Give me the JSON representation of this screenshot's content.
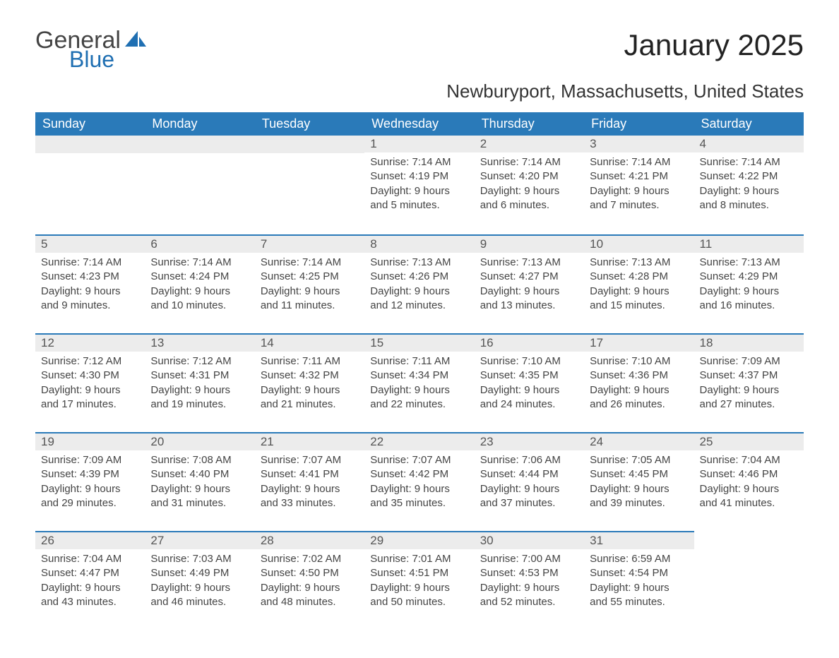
{
  "brand": {
    "general": "General",
    "blue": "Blue",
    "sail_color": "#1f6fb2"
  },
  "title": "January 2025",
  "location": "Newburyport, Massachusetts, United States",
  "colors": {
    "header_bg": "#2a7ab9",
    "header_text": "#ffffff",
    "daybar_bg": "#ececec",
    "daybar_border": "#2a7ab9",
    "body_text": "#444444",
    "page_bg": "#ffffff"
  },
  "daysOfWeek": [
    "Sunday",
    "Monday",
    "Tuesday",
    "Wednesday",
    "Thursday",
    "Friday",
    "Saturday"
  ],
  "weeks": [
    [
      null,
      null,
      null,
      {
        "n": "1",
        "sr": "Sunrise: 7:14 AM",
        "ss": "Sunset: 4:19 PM",
        "d1": "Daylight: 9 hours",
        "d2": "and 5 minutes."
      },
      {
        "n": "2",
        "sr": "Sunrise: 7:14 AM",
        "ss": "Sunset: 4:20 PM",
        "d1": "Daylight: 9 hours",
        "d2": "and 6 minutes."
      },
      {
        "n": "3",
        "sr": "Sunrise: 7:14 AM",
        "ss": "Sunset: 4:21 PM",
        "d1": "Daylight: 9 hours",
        "d2": "and 7 minutes."
      },
      {
        "n": "4",
        "sr": "Sunrise: 7:14 AM",
        "ss": "Sunset: 4:22 PM",
        "d1": "Daylight: 9 hours",
        "d2": "and 8 minutes."
      }
    ],
    [
      {
        "n": "5",
        "sr": "Sunrise: 7:14 AM",
        "ss": "Sunset: 4:23 PM",
        "d1": "Daylight: 9 hours",
        "d2": "and 9 minutes."
      },
      {
        "n": "6",
        "sr": "Sunrise: 7:14 AM",
        "ss": "Sunset: 4:24 PM",
        "d1": "Daylight: 9 hours",
        "d2": "and 10 minutes."
      },
      {
        "n": "7",
        "sr": "Sunrise: 7:14 AM",
        "ss": "Sunset: 4:25 PM",
        "d1": "Daylight: 9 hours",
        "d2": "and 11 minutes."
      },
      {
        "n": "8",
        "sr": "Sunrise: 7:13 AM",
        "ss": "Sunset: 4:26 PM",
        "d1": "Daylight: 9 hours",
        "d2": "and 12 minutes."
      },
      {
        "n": "9",
        "sr": "Sunrise: 7:13 AM",
        "ss": "Sunset: 4:27 PM",
        "d1": "Daylight: 9 hours",
        "d2": "and 13 minutes."
      },
      {
        "n": "10",
        "sr": "Sunrise: 7:13 AM",
        "ss": "Sunset: 4:28 PM",
        "d1": "Daylight: 9 hours",
        "d2": "and 15 minutes."
      },
      {
        "n": "11",
        "sr": "Sunrise: 7:13 AM",
        "ss": "Sunset: 4:29 PM",
        "d1": "Daylight: 9 hours",
        "d2": "and 16 minutes."
      }
    ],
    [
      {
        "n": "12",
        "sr": "Sunrise: 7:12 AM",
        "ss": "Sunset: 4:30 PM",
        "d1": "Daylight: 9 hours",
        "d2": "and 17 minutes."
      },
      {
        "n": "13",
        "sr": "Sunrise: 7:12 AM",
        "ss": "Sunset: 4:31 PM",
        "d1": "Daylight: 9 hours",
        "d2": "and 19 minutes."
      },
      {
        "n": "14",
        "sr": "Sunrise: 7:11 AM",
        "ss": "Sunset: 4:32 PM",
        "d1": "Daylight: 9 hours",
        "d2": "and 21 minutes."
      },
      {
        "n": "15",
        "sr": "Sunrise: 7:11 AM",
        "ss": "Sunset: 4:34 PM",
        "d1": "Daylight: 9 hours",
        "d2": "and 22 minutes."
      },
      {
        "n": "16",
        "sr": "Sunrise: 7:10 AM",
        "ss": "Sunset: 4:35 PM",
        "d1": "Daylight: 9 hours",
        "d2": "and 24 minutes."
      },
      {
        "n": "17",
        "sr": "Sunrise: 7:10 AM",
        "ss": "Sunset: 4:36 PM",
        "d1": "Daylight: 9 hours",
        "d2": "and 26 minutes."
      },
      {
        "n": "18",
        "sr": "Sunrise: 7:09 AM",
        "ss": "Sunset: 4:37 PM",
        "d1": "Daylight: 9 hours",
        "d2": "and 27 minutes."
      }
    ],
    [
      {
        "n": "19",
        "sr": "Sunrise: 7:09 AM",
        "ss": "Sunset: 4:39 PM",
        "d1": "Daylight: 9 hours",
        "d2": "and 29 minutes."
      },
      {
        "n": "20",
        "sr": "Sunrise: 7:08 AM",
        "ss": "Sunset: 4:40 PM",
        "d1": "Daylight: 9 hours",
        "d2": "and 31 minutes."
      },
      {
        "n": "21",
        "sr": "Sunrise: 7:07 AM",
        "ss": "Sunset: 4:41 PM",
        "d1": "Daylight: 9 hours",
        "d2": "and 33 minutes."
      },
      {
        "n": "22",
        "sr": "Sunrise: 7:07 AM",
        "ss": "Sunset: 4:42 PM",
        "d1": "Daylight: 9 hours",
        "d2": "and 35 minutes."
      },
      {
        "n": "23",
        "sr": "Sunrise: 7:06 AM",
        "ss": "Sunset: 4:44 PM",
        "d1": "Daylight: 9 hours",
        "d2": "and 37 minutes."
      },
      {
        "n": "24",
        "sr": "Sunrise: 7:05 AM",
        "ss": "Sunset: 4:45 PM",
        "d1": "Daylight: 9 hours",
        "d2": "and 39 minutes."
      },
      {
        "n": "25",
        "sr": "Sunrise: 7:04 AM",
        "ss": "Sunset: 4:46 PM",
        "d1": "Daylight: 9 hours",
        "d2": "and 41 minutes."
      }
    ],
    [
      {
        "n": "26",
        "sr": "Sunrise: 7:04 AM",
        "ss": "Sunset: 4:47 PM",
        "d1": "Daylight: 9 hours",
        "d2": "and 43 minutes."
      },
      {
        "n": "27",
        "sr": "Sunrise: 7:03 AM",
        "ss": "Sunset: 4:49 PM",
        "d1": "Daylight: 9 hours",
        "d2": "and 46 minutes."
      },
      {
        "n": "28",
        "sr": "Sunrise: 7:02 AM",
        "ss": "Sunset: 4:50 PM",
        "d1": "Daylight: 9 hours",
        "d2": "and 48 minutes."
      },
      {
        "n": "29",
        "sr": "Sunrise: 7:01 AM",
        "ss": "Sunset: 4:51 PM",
        "d1": "Daylight: 9 hours",
        "d2": "and 50 minutes."
      },
      {
        "n": "30",
        "sr": "Sunrise: 7:00 AM",
        "ss": "Sunset: 4:53 PM",
        "d1": "Daylight: 9 hours",
        "d2": "and 52 minutes."
      },
      {
        "n": "31",
        "sr": "Sunrise: 6:59 AM",
        "ss": "Sunset: 4:54 PM",
        "d1": "Daylight: 9 hours",
        "d2": "and 55 minutes."
      },
      null
    ]
  ]
}
